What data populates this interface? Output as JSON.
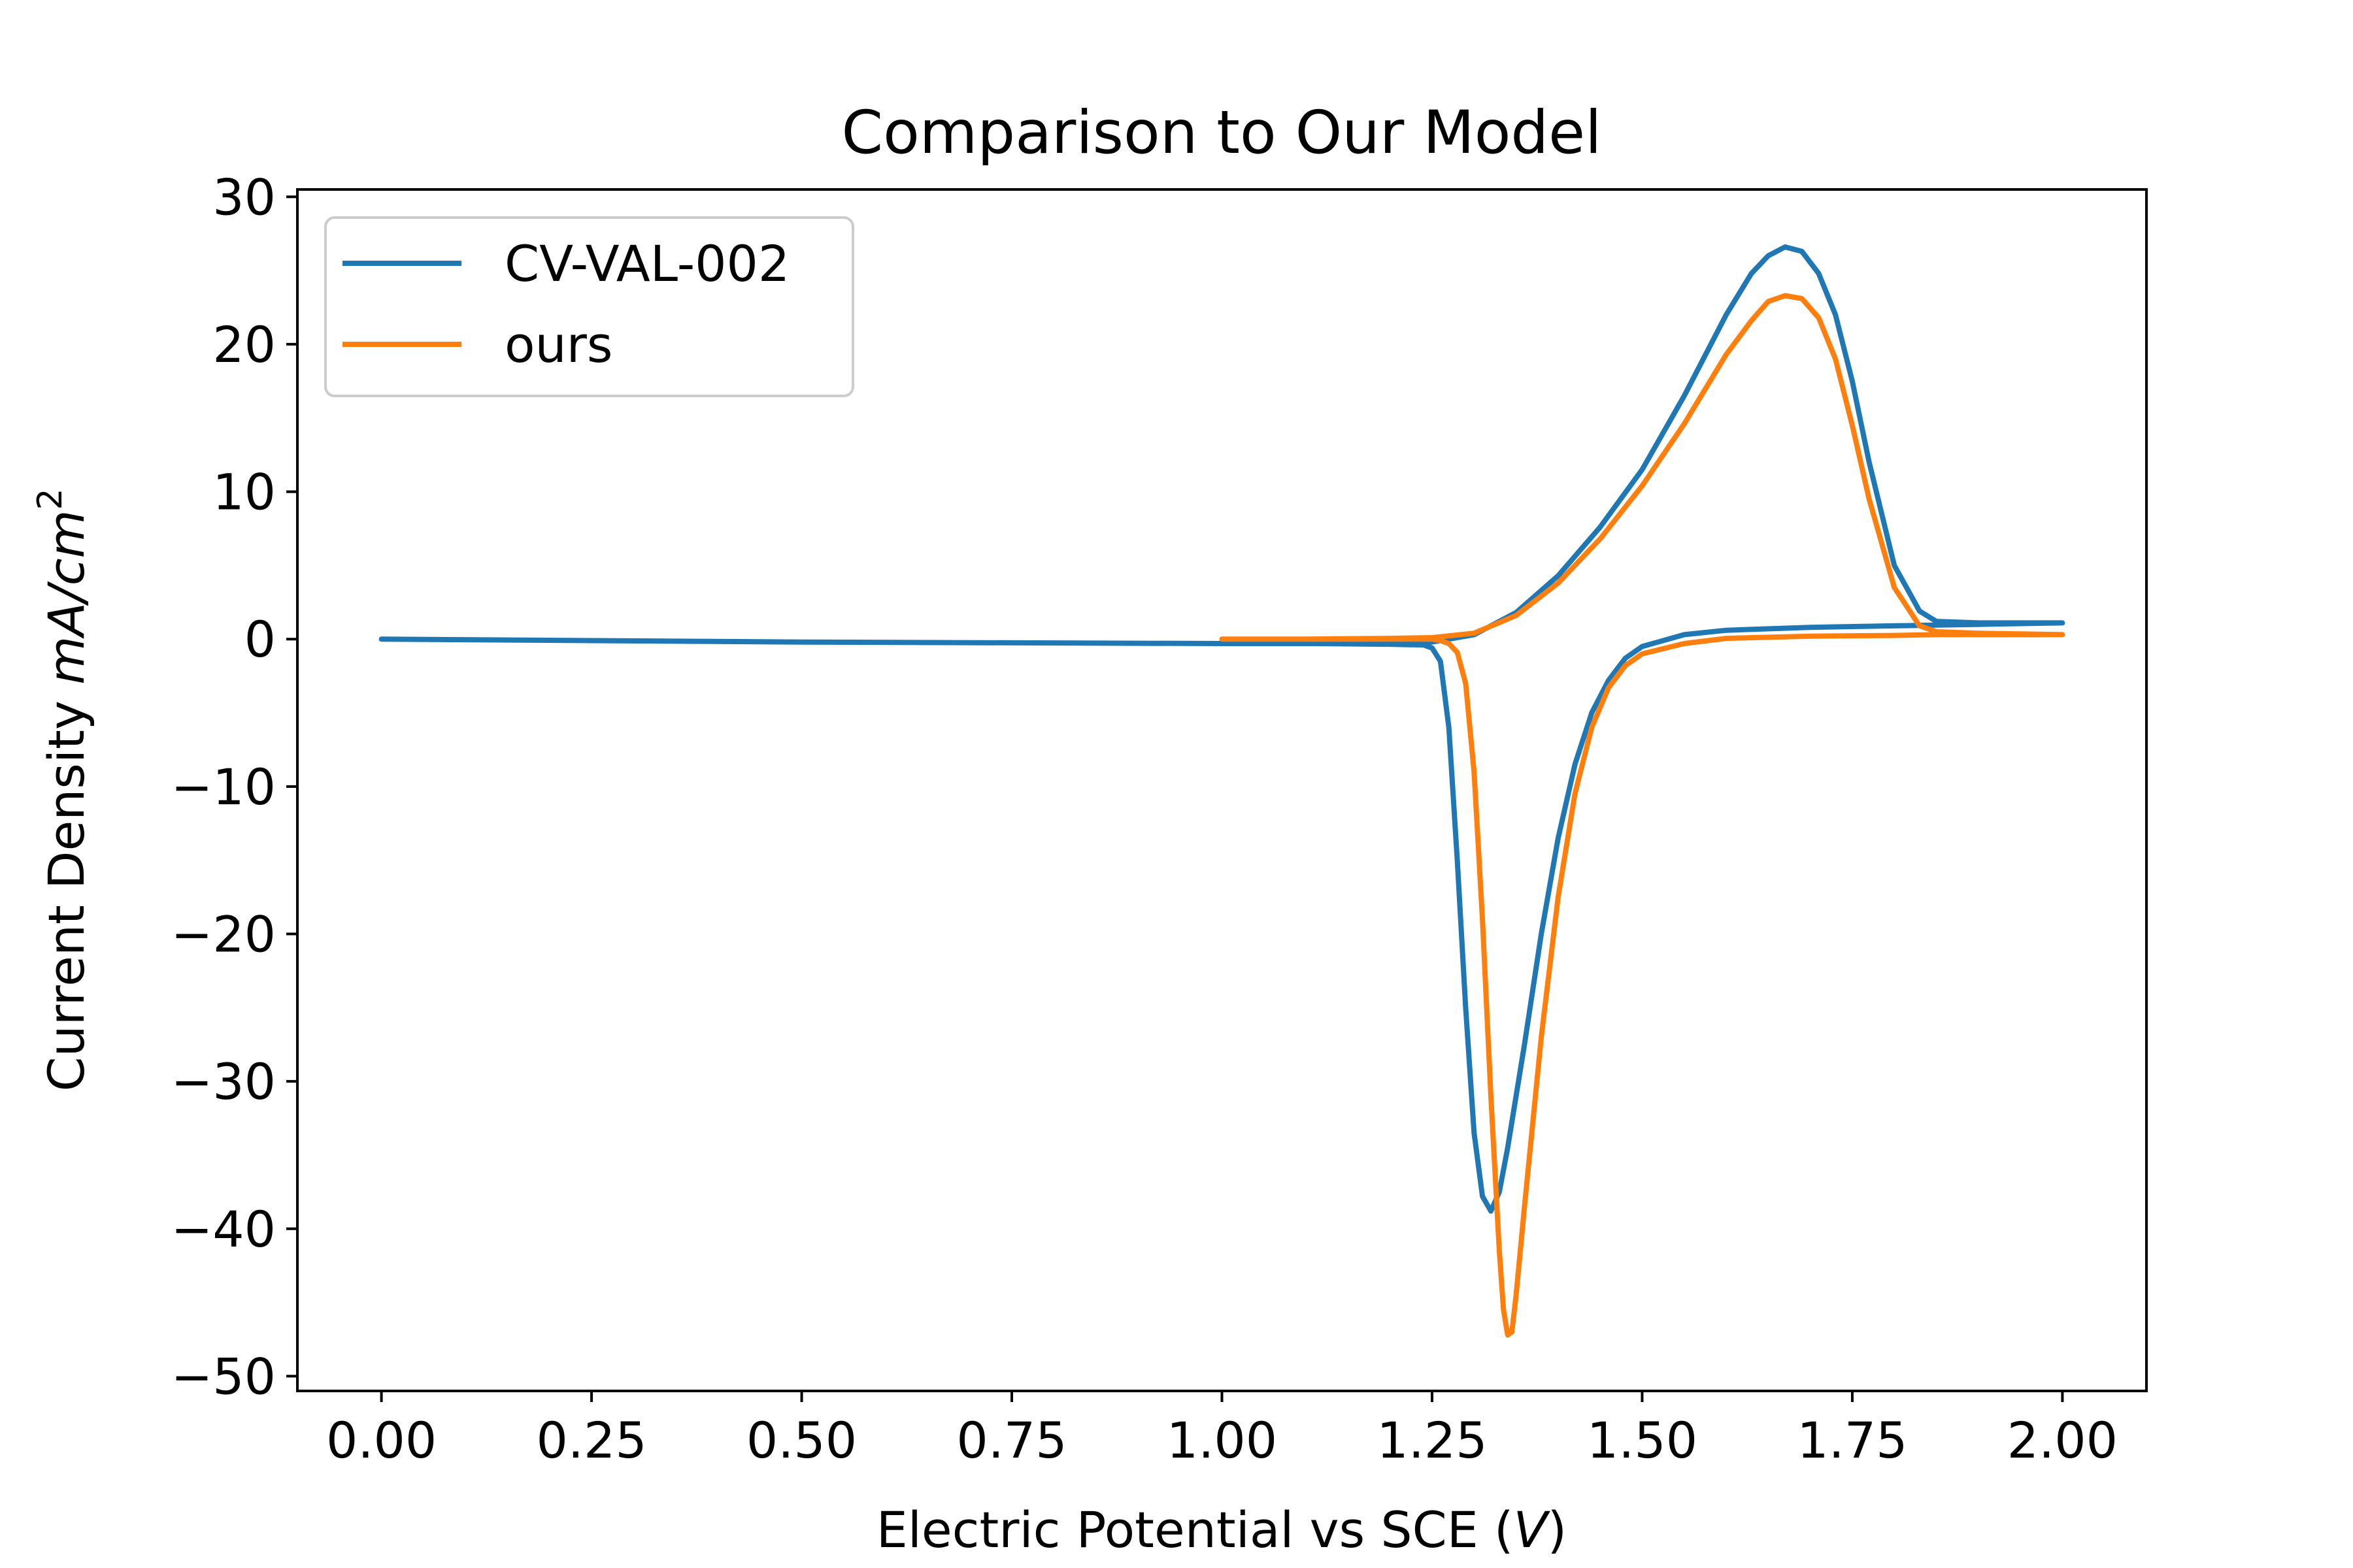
{
  "chart_data": {
    "type": "line",
    "title": "Comparison to Our Model",
    "xlabel": {
      "text": "Electric Potential vs SCE (",
      "italic": "V",
      "suffix": ")"
    },
    "ylabel": {
      "text": "Current Density ",
      "italic": "mA/cm",
      "sup": "2"
    },
    "xlim": [
      -0.1,
      2.1
    ],
    "ylim": [
      -51,
      30.5
    ],
    "x_ticks": [
      0.0,
      0.25,
      0.5,
      0.75,
      1.0,
      1.25,
      1.5,
      1.75,
      2.0
    ],
    "x_tick_labels": [
      "0.00",
      "0.25",
      "0.50",
      "0.75",
      "1.00",
      "1.25",
      "1.50",
      "1.75",
      "2.00"
    ],
    "y_ticks": [
      30,
      20,
      10,
      0,
      -10,
      -20,
      -30,
      -40,
      -50
    ],
    "y_tick_labels": [
      "30",
      "20",
      "10",
      "0",
      "−10",
      "−20",
      "−30",
      "−40",
      "−50"
    ],
    "grid": false,
    "legend_position": "top-left",
    "series": [
      {
        "name": "CV-VAL-002",
        "color": "#1f77b4",
        "x": [
          0.0,
          0.25,
          0.5,
          0.75,
          1.0,
          1.1,
          1.2,
          1.25,
          1.3,
          1.35,
          1.4,
          1.45,
          1.5,
          1.55,
          1.6,
          1.63,
          1.65,
          1.67,
          1.69,
          1.71,
          1.73,
          1.75,
          1.77,
          1.8,
          1.83,
          1.85,
          1.9,
          1.95,
          2.0,
          1.95,
          1.9,
          1.85,
          1.8,
          1.7,
          1.6,
          1.55,
          1.5,
          1.48,
          1.46,
          1.44,
          1.42,
          1.4,
          1.38,
          1.36,
          1.34,
          1.33,
          1.32,
          1.31,
          1.3,
          1.29,
          1.28,
          1.27,
          1.26,
          1.25,
          1.24,
          1.2,
          1.1,
          1.0
        ],
        "y": [
          0.0,
          -0.1,
          -0.2,
          -0.25,
          -0.3,
          -0.3,
          -0.3,
          -0.2,
          0.3,
          1.8,
          4.3,
          7.6,
          11.5,
          16.5,
          22.0,
          24.8,
          26.0,
          26.6,
          26.3,
          24.8,
          22.0,
          17.5,
          12.0,
          5.0,
          1.9,
          1.2,
          1.1,
          1.1,
          1.1,
          1.05,
          1.0,
          0.95,
          0.9,
          0.8,
          0.6,
          0.3,
          -0.5,
          -1.3,
          -2.8,
          -5.0,
          -8.5,
          -13.5,
          -20.0,
          -27.5,
          -34.5,
          -37.5,
          -38.8,
          -37.8,
          -33.5,
          -25.0,
          -15.0,
          -6.0,
          -1.5,
          -0.6,
          -0.4,
          -0.35,
          -0.3,
          -0.3
        ]
      },
      {
        "name": "ours",
        "color": "#ff7f0e",
        "x": [
          1.0,
          1.1,
          1.2,
          1.25,
          1.3,
          1.35,
          1.4,
          1.45,
          1.5,
          1.55,
          1.6,
          1.63,
          1.65,
          1.67,
          1.69,
          1.71,
          1.73,
          1.75,
          1.77,
          1.8,
          1.83,
          1.85,
          1.9,
          1.95,
          2.0,
          1.95,
          1.9,
          1.85,
          1.8,
          1.7,
          1.6,
          1.55,
          1.5,
          1.48,
          1.46,
          1.44,
          1.42,
          1.4,
          1.38,
          1.36,
          1.35,
          1.345,
          1.34,
          1.335,
          1.33,
          1.32,
          1.31,
          1.3,
          1.29,
          1.28,
          1.27,
          1.26,
          1.25,
          1.2,
          1.1,
          1.0
        ],
        "y": [
          0.0,
          0.0,
          0.05,
          0.1,
          0.4,
          1.6,
          3.8,
          6.8,
          10.4,
          14.6,
          19.3,
          21.6,
          22.9,
          23.3,
          23.1,
          21.8,
          19.0,
          14.5,
          9.5,
          3.5,
          0.9,
          0.5,
          0.4,
          0.35,
          0.3,
          0.3,
          0.3,
          0.3,
          0.25,
          0.2,
          0.05,
          -0.3,
          -1.0,
          -1.8,
          -3.3,
          -6.0,
          -10.5,
          -17.5,
          -27.0,
          -38.5,
          -44.5,
          -47.0,
          -47.2,
          -45.5,
          -41.5,
          -31.0,
          -19.0,
          -9.0,
          -3.0,
          -0.9,
          -0.3,
          -0.1,
          0.0,
          0.0,
          0.0,
          0.0
        ]
      }
    ]
  }
}
